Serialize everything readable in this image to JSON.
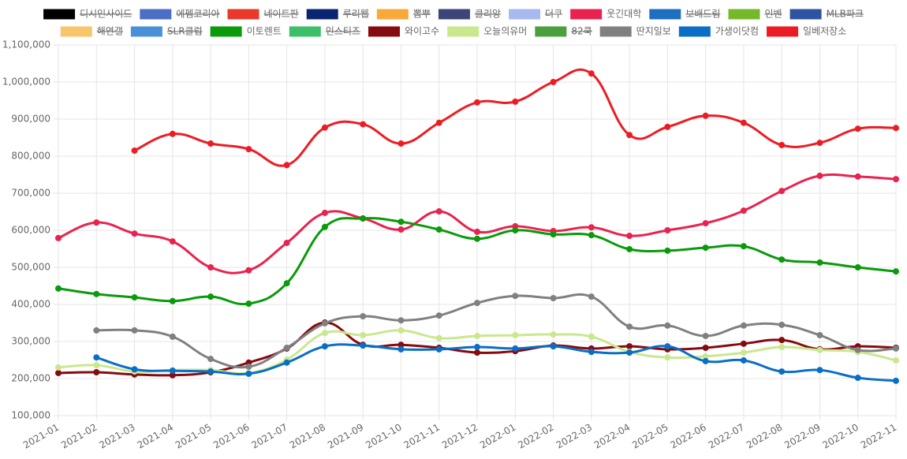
{
  "chart_data": {
    "type": "line",
    "categories": [
      "2021-01",
      "2021-02",
      "2021-03",
      "2021-04",
      "2021-05",
      "2021-06",
      "2021-07",
      "2021-08",
      "2021-09",
      "2021-10",
      "2021-11",
      "2021-12",
      "2022-01",
      "2022-02",
      "2022-03",
      "2022-04",
      "2022-05",
      "2022-06",
      "2022-07",
      "2022-08",
      "2022-09",
      "2022-10",
      "2022-11"
    ],
    "ylim": [
      100000,
      1100000
    ],
    "yticks": [
      {
        "value": 100000,
        "label": "100,000"
      },
      {
        "value": 200000,
        "label": "200,000"
      },
      {
        "value": 300000,
        "label": "300,000"
      },
      {
        "value": 400000,
        "label": "400,000"
      },
      {
        "value": 500000,
        "label": "500,000"
      },
      {
        "value": 600000,
        "label": "600,000"
      },
      {
        "value": 700000,
        "label": "700,000"
      },
      {
        "value": 800000,
        "label": "800,000"
      },
      {
        "value": 900000,
        "label": "900,000"
      },
      {
        "value": 1000000,
        "label": "1,000,000"
      },
      {
        "value": 1100000,
        "label": "1,100,000"
      }
    ],
    "grid": true,
    "legend": "top",
    "series": [
      {
        "name": "디시인사이드",
        "color": "#000000",
        "hidden": true
      },
      {
        "name": "에펨코리아",
        "color": "#4a6fc4",
        "hidden": true
      },
      {
        "name": "네이트판",
        "color": "#e8392a",
        "hidden": true
      },
      {
        "name": "루리웹",
        "color": "#0a2570",
        "hidden": true
      },
      {
        "name": "뽐뿌",
        "color": "#f9a83b",
        "hidden": true
      },
      {
        "name": "클리앙",
        "color": "#3b4577",
        "hidden": true
      },
      {
        "name": "더쿠",
        "color": "#a8b9f0",
        "hidden": true
      },
      {
        "name": "웃긴대학",
        "color": "#e8234f",
        "values": [
          579000,
          621000,
          591000,
          570000,
          500000,
          492000,
          566000,
          647000,
          632000,
          602000,
          651000,
          596000,
          611000,
          598000,
          608000,
          585000,
          600000,
          619000,
          653000,
          706000,
          747000,
          745000,
          738000
        ]
      },
      {
        "name": "보배드림",
        "color": "#1f6fc0",
        "hidden": true
      },
      {
        "name": "인벤",
        "color": "#76b82a",
        "hidden": true
      },
      {
        "name": "MLB파크",
        "color": "#2e53a0",
        "hidden": true
      },
      {
        "name": "해연갤",
        "color": "#f9c56b",
        "hidden": true
      },
      {
        "name": "SLR클럽",
        "color": "#4a90d9",
        "hidden": true
      },
      {
        "name": "이토렌트",
        "color": "#0a9a0a",
        "values": [
          443000,
          428000,
          419000,
          409000,
          421000,
          402000,
          457000,
          609000,
          632000,
          623000,
          602000,
          577000,
          600000,
          589000,
          587000,
          549000,
          545000,
          553000,
          557000,
          521000,
          513000,
          500000,
          489000
        ]
      },
      {
        "name": "인스티즈",
        "color": "#3dbf6a",
        "hidden": true
      },
      {
        "name": "와이고수",
        "color": "#850b11",
        "values": [
          215000,
          217000,
          211000,
          209000,
          217000,
          243000,
          281000,
          351000,
          291000,
          291000,
          283000,
          270000,
          274000,
          289000,
          281000,
          287000,
          279000,
          283000,
          294000,
          304000,
          279000,
          287000,
          283000
        ]
      },
      {
        "name": "오늘의유머",
        "color": "#c9e88e",
        "values": [
          230000,
          236000,
          219000,
          223000,
          223000,
          215000,
          251000,
          323000,
          317000,
          330000,
          309000,
          315000,
          317000,
          319000,
          313000,
          272000,
          257000,
          260000,
          270000,
          285000,
          277000,
          272000,
          249000
        ]
      },
      {
        "name": "82쿡",
        "color": "#4aa03c",
        "hidden": true
      },
      {
        "name": "딴지일보",
        "color": "#808080",
        "values": [
          null,
          330000,
          330000,
          313000,
          253000,
          232000,
          283000,
          349000,
          368000,
          357000,
          370000,
          404000,
          423000,
          417000,
          421000,
          340000,
          343000,
          315000,
          343000,
          345000,
          317000,
          277000,
          281000
        ]
      },
      {
        "name": "가생이닷컴",
        "color": "#0a6ec6",
        "values": [
          null,
          257000,
          225000,
          221000,
          219000,
          213000,
          243000,
          287000,
          289000,
          279000,
          279000,
          285000,
          281000,
          287000,
          272000,
          270000,
          287000,
          247000,
          249000,
          219000,
          223000,
          202000,
          194000
        ]
      },
      {
        "name": "일베저장소",
        "color": "#ed1c24",
        "values": [
          null,
          null,
          815000,
          860000,
          834000,
          819000,
          776000,
          877000,
          886000,
          834000,
          890000,
          945000,
          947000,
          1000000,
          1023000,
          857000,
          879000,
          909000,
          890000,
          830000,
          836000,
          874000,
          876000
        ]
      }
    ]
  }
}
